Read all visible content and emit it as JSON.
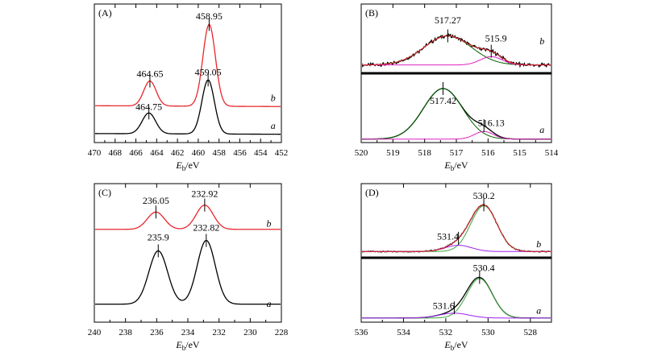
{
  "chart_data": [
    {
      "id": "A",
      "type": "line",
      "panel_label": "(A)",
      "xlabel_main": "E",
      "xlabel_sub": "b",
      "xlabel_unit": "/eV",
      "xlim": [
        470,
        452
      ],
      "xticks": [
        "470",
        "468",
        "466",
        "464",
        "462",
        "460",
        "458",
        "456",
        "454",
        "452"
      ],
      "ylim": [
        0,
        10
      ],
      "series": [
        {
          "name": "b",
          "color": "#e8262c",
          "baseline": 2.6,
          "peaks": [
            {
              "center": 464.65,
              "height": 1.8,
              "width": 0.6
            },
            {
              "center": 458.95,
              "height": 5.9,
              "width": 0.6
            }
          ],
          "slope": 0.06,
          "noise": 0.0
        },
        {
          "name": "a",
          "color": "#000000",
          "baseline": 0.6,
          "peaks": [
            {
              "center": 464.75,
              "height": 1.5,
              "width": 0.65
            },
            {
              "center": 459.05,
              "height": 3.9,
              "width": 0.6
            }
          ],
          "slope": 0.05,
          "noise": 0.0
        }
      ],
      "annotations": [
        {
          "text": "458.95",
          "x": 458.95,
          "y": 8.9
        },
        {
          "text": "464.65",
          "x": 464.65,
          "y": 4.75
        },
        {
          "text": "459.05",
          "x": 459.05,
          "y": 4.85
        },
        {
          "text": "464.75",
          "x": 464.75,
          "y": 2.35
        }
      ],
      "trace_labels": [
        {
          "text": "b",
          "x": 452.8,
          "y": 3.0
        },
        {
          "text": "a",
          "x": 452.8,
          "y": 1.0
        }
      ]
    },
    {
      "id": "B",
      "type": "line",
      "panel_label": "(B)",
      "xlabel_main": "E",
      "xlabel_sub": "b",
      "xlabel_unit": "/eV",
      "xlim": [
        520,
        514
      ],
      "xticks": [
        "520",
        "519",
        "518",
        "517",
        "516",
        "515",
        "514"
      ],
      "ylim": [
        0,
        10
      ],
      "separator_y": 5.0,
      "series": [
        {
          "name": "b",
          "color": "#000000",
          "baseline": 5.6,
          "peaks": [
            {
              "center": 517.27,
              "height": 2.1,
              "width": 0.75
            },
            {
              "center": 515.9,
              "height": 0.6,
              "width": 0.35
            }
          ],
          "slope": 0.0,
          "noise": 0.18
        },
        {
          "name": "b-fit-517.27",
          "color": "#006400",
          "baseline": 5.6,
          "peaks": [
            {
              "center": 517.27,
              "height": 2.1,
              "width": 0.75
            }
          ],
          "slope": 0.0,
          "noise": 0.0
        },
        {
          "name": "b-fit-515.9",
          "color": "#e020c0",
          "baseline": 5.6,
          "peaks": [
            {
              "center": 515.9,
              "height": 0.6,
              "width": 0.35
            }
          ],
          "slope": 0.0,
          "noise": 0.0
        },
        {
          "name": "b-envelope",
          "color": "#e8262c",
          "baseline": 5.6,
          "peaks": [
            {
              "center": 517.27,
              "height": 2.1,
              "width": 0.75
            },
            {
              "center": 515.9,
              "height": 0.6,
              "width": 0.35
            }
          ],
          "slope": 0.0,
          "noise": 0.0
        },
        {
          "name": "a",
          "color": "#000000",
          "baseline": 0.25,
          "peaks": [
            {
              "center": 517.42,
              "height": 3.65,
              "width": 0.62
            },
            {
              "center": 516.13,
              "height": 0.55,
              "width": 0.3
            }
          ],
          "slope": 0.0,
          "noise": 0.0
        },
        {
          "name": "a-fit-517.42",
          "color": "#006400",
          "baseline": 0.25,
          "peaks": [
            {
              "center": 517.42,
              "height": 3.65,
              "width": 0.62
            }
          ],
          "slope": 0.0,
          "noise": 0.0
        },
        {
          "name": "a-fit-516.13",
          "color": "#e020c0",
          "baseline": 0.25,
          "peaks": [
            {
              "center": 516.13,
              "height": 0.55,
              "width": 0.3
            }
          ],
          "slope": 0.0,
          "noise": 0.0
        }
      ],
      "annotations": [
        {
          "text": "517.27",
          "x": 517.27,
          "y": 8.6
        },
        {
          "text": "515.9",
          "x": 515.75,
          "y": 7.3
        },
        {
          "text": "517.42",
          "x": 517.42,
          "y": 2.8
        },
        {
          "text": "516.13",
          "x": 515.9,
          "y": 1.2
        }
      ],
      "trace_labels": [
        {
          "text": "b",
          "x": 514.3,
          "y": 7.1
        },
        {
          "text": "a",
          "x": 514.3,
          "y": 0.7
        }
      ]
    },
    {
      "id": "C",
      "type": "line",
      "panel_label": "(C)",
      "xlabel_main": "E",
      "xlabel_sub": "b",
      "xlabel_unit": "/eV",
      "xlim": [
        240,
        228
      ],
      "xticks": [
        "240",
        "238",
        "236",
        "234",
        "232",
        "230",
        "228"
      ],
      "ylim": [
        0,
        10
      ],
      "series": [
        {
          "name": "b",
          "color": "#e8262c",
          "baseline": 6.7,
          "peaks": [
            {
              "center": 236.05,
              "height": 1.25,
              "width": 0.55
            },
            {
              "center": 232.92,
              "height": 1.75,
              "width": 0.55
            }
          ],
          "slope": 0.0,
          "noise": 0.0
        },
        {
          "name": "a",
          "color": "#000000",
          "baseline": 1.3,
          "peaks": [
            {
              "center": 235.9,
              "height": 3.85,
              "width": 0.6
            },
            {
              "center": 232.82,
              "height": 4.6,
              "width": 0.58
            }
          ],
          "slope": 0.0,
          "noise": 0.0
        }
      ],
      "annotations": [
        {
          "text": "236.05",
          "x": 236.05,
          "y": 8.55
        },
        {
          "text": "232.92",
          "x": 232.92,
          "y": 9.05
        },
        {
          "text": "235.9",
          "x": 235.9,
          "y": 5.9
        },
        {
          "text": "232.82",
          "x": 232.82,
          "y": 6.6
        }
      ],
      "trace_labels": [
        {
          "text": "b",
          "x": 228.8,
          "y": 6.9
        },
        {
          "text": "a",
          "x": 228.8,
          "y": 1.1
        }
      ]
    },
    {
      "id": "D",
      "type": "line",
      "panel_label": "(D)",
      "xlabel_main": "E",
      "xlabel_sub": "b",
      "xlabel_unit": "/eV",
      "xlim": [
        536,
        527
      ],
      "xticks": [
        "536",
        "534",
        "532",
        "530",
        "528"
      ],
      "ylim": [
        0,
        10
      ],
      "separator_y": 4.65,
      "series": [
        {
          "name": "b",
          "color": "#000000",
          "baseline": 5.1,
          "peaks": [
            {
              "center": 530.2,
              "height": 3.3,
              "width": 0.62
            },
            {
              "center": 531.4,
              "height": 0.45,
              "width": 0.62
            }
          ],
          "slope": 0.0,
          "noise": 0.06
        },
        {
          "name": "b-fit-530.2",
          "color": "#3aa63a",
          "baseline": 5.1,
          "peaks": [
            {
              "center": 530.2,
              "height": 3.3,
              "width": 0.62
            }
          ],
          "slope": 0.0,
          "noise": 0.0
        },
        {
          "name": "b-fit-531.4",
          "color": "#a020f0",
          "baseline": 5.1,
          "peaks": [
            {
              "center": 531.4,
              "height": 0.45,
              "width": 0.62
            }
          ],
          "slope": 0.0,
          "noise": 0.0
        },
        {
          "name": "b-envelope",
          "color": "#e8262c",
          "baseline": 5.1,
          "peaks": [
            {
              "center": 530.2,
              "height": 3.3,
              "width": 0.62
            },
            {
              "center": 531.4,
              "height": 0.45,
              "width": 0.62
            }
          ],
          "slope": 0.0,
          "noise": 0.0
        },
        {
          "name": "a",
          "color": "#000000",
          "baseline": 0.3,
          "peaks": [
            {
              "center": 530.4,
              "height": 2.85,
              "width": 0.6
            },
            {
              "center": 531.6,
              "height": 0.35,
              "width": 0.7
            }
          ],
          "slope": 0.0,
          "noise": 0.0
        },
        {
          "name": "a-fit-530.4",
          "color": "#3aa63a",
          "baseline": 0.3,
          "peaks": [
            {
              "center": 530.4,
              "height": 2.85,
              "width": 0.6
            }
          ],
          "slope": 0.0,
          "noise": 0.0
        },
        {
          "name": "a-fit-531.6",
          "color": "#a020f0",
          "baseline": 0.3,
          "peaks": [
            {
              "center": 531.6,
              "height": 0.35,
              "width": 0.7
            }
          ],
          "slope": 0.0,
          "noise": 0.0
        }
      ],
      "annotations": [
        {
          "text": "530.2",
          "x": 530.2,
          "y": 8.9
        },
        {
          "text": "531.4",
          "x": 531.9,
          "y": 5.95
        },
        {
          "text": "530.4",
          "x": 530.2,
          "y": 3.7
        },
        {
          "text": "531.6",
          "x": 532.1,
          "y": 0.95
        }
      ],
      "trace_labels": [
        {
          "text": "b",
          "x": 527.6,
          "y": 5.4
        },
        {
          "text": "a",
          "x": 527.6,
          "y": 0.6
        }
      ]
    }
  ]
}
